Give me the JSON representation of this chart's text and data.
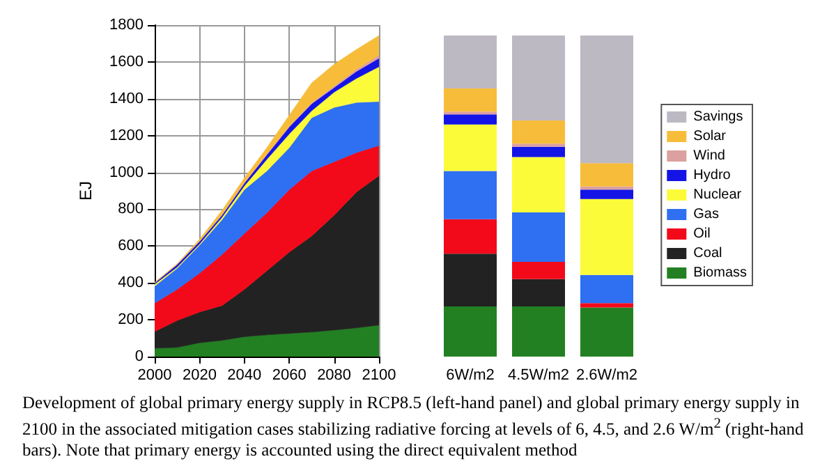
{
  "chart_data": [
    {
      "type": "area",
      "stacked": true,
      "ylabel": "EJ",
      "x": [
        2000,
        2010,
        2020,
        2030,
        2040,
        2050,
        2060,
        2070,
        2080,
        2090,
        2100
      ],
      "xlim": [
        2000,
        2100
      ],
      "xticks": [
        2000,
        2020,
        2040,
        2060,
        2080,
        2100
      ],
      "ylim": [
        0,
        1800
      ],
      "yticks": [
        0,
        200,
        400,
        600,
        800,
        1000,
        1200,
        1400,
        1600,
        1800
      ],
      "grid": true,
      "legend": false,
      "series": [
        {
          "color": "#228022",
          "values": [
            45,
            50,
            75,
            88,
            108,
            118,
            126,
            133,
            144,
            156,
            171
          ]
        },
        {
          "color": "#222222",
          "values": [
            91,
            146,
            167,
            189,
            257,
            348,
            441,
            522,
            624,
            738,
            811
          ]
        },
        {
          "color": "#f20a1a",
          "values": [
            154,
            169,
            211,
            277,
            303,
            315,
            340,
            353,
            290,
            214,
            164
          ]
        },
        {
          "color": "#2f6ff2",
          "values": [
            93,
            114,
            152,
            189,
            239,
            227,
            227,
            289,
            295,
            272,
            239
          ]
        },
        {
          "color": "#fbfb3a",
          "values": [
            10,
            7,
            7,
            13,
            20,
            63,
            75,
            38,
            83,
            131,
            189
          ]
        },
        {
          "color": "#1414e6",
          "values": [
            7,
            13,
            13,
            12,
            15,
            25,
            38,
            38,
            25,
            38,
            46
          ]
        },
        {
          "color": "#dca0a0",
          "values": [
            1,
            2,
            2,
            3,
            3,
            3,
            4,
            5,
            8,
            12,
            17
          ]
        },
        {
          "color": "#f7bd3a",
          "values": [
            2,
            3,
            10,
            22,
            25,
            35,
            59,
            108,
            118,
            107,
            106
          ]
        }
      ],
      "annotations": [
        "Development of global primary energy supply in RCP8.5 (left-hand panel) and global primary energy supply in 2100 in the associated mitigation cases stabilizing radiative forcing at levels of 6, 4.5, and 2.6 W/m$^{2}$ (right-hand bars). Note that primary energy is accounted using the direct equivalent method"
      ]
    },
    {
      "type": "bar",
      "stacked": true,
      "categories": [
        "6W/m2",
        "4.5W/m2",
        "2.6W/m2"
      ],
      "ylim": [
        0,
        1800
      ],
      "tick_labels": "x",
      "grid": false,
      "legend": "right",
      "series": [
        {
          "name": "Biomass",
          "color": "#228022",
          "values": [
            272,
            272,
            267
          ]
        },
        {
          "name": "Coal",
          "color": "#222222",
          "values": [
            287,
            149,
            0
          ]
        },
        {
          "name": "Oil",
          "color": "#f20a1a",
          "values": [
            187,
            93,
            23
          ]
        },
        {
          "name": "Gas",
          "color": "#2f6ff2",
          "values": [
            262,
            269,
            153
          ]
        },
        {
          "name": "Nuclear",
          "color": "#fbfb3a",
          "values": [
            252,
            300,
            413
          ]
        },
        {
          "name": "Hydro",
          "color": "#1414e6",
          "values": [
            55,
            56,
            51
          ]
        },
        {
          "name": "Wind",
          "color": "#dca0a0",
          "values": [
            15,
            17,
            17
          ]
        },
        {
          "name": "Solar",
          "color": "#f7bd3a",
          "values": [
            126,
            126,
            126
          ]
        },
        {
          "name": "Savings",
          "color": "#bdb9c3",
          "values": [
            287,
            461,
            693
          ]
        }
      ]
    }
  ]
}
